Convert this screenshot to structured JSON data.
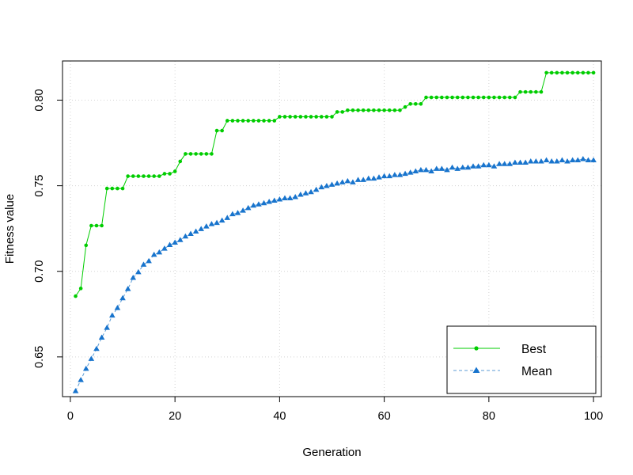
{
  "chart_data": {
    "type": "line",
    "title": "",
    "xlabel": "Generation",
    "ylabel": "Fitness value",
    "xlim": [
      -1.5,
      101.5
    ],
    "ylim": [
      0.6268,
      0.8229
    ],
    "x_ticks": [
      "0",
      "20",
      "40",
      "60",
      "80",
      "100"
    ],
    "y_ticks": [
      "0.65",
      "0.70",
      "0.75",
      "0.80"
    ],
    "x_tick_values": [
      0,
      20,
      40,
      60,
      80,
      100
    ],
    "y_tick_values": [
      0.65,
      0.7,
      0.75,
      0.8
    ],
    "grid": true,
    "legend_position": "bottom-right",
    "series": [
      {
        "name": "Best",
        "color": "#00cd00",
        "marker": "circle",
        "line_style": "solid",
        "x": [
          1,
          2,
          3,
          4,
          5,
          6,
          7,
          8,
          9,
          10,
          11,
          12,
          13,
          14,
          15,
          16,
          17,
          18,
          19,
          20,
          21,
          22,
          23,
          24,
          25,
          26,
          27,
          28,
          29,
          30,
          31,
          32,
          33,
          34,
          35,
          36,
          37,
          38,
          39,
          40,
          41,
          42,
          43,
          44,
          45,
          46,
          47,
          48,
          49,
          50,
          51,
          52,
          53,
          54,
          55,
          56,
          57,
          58,
          59,
          60,
          61,
          62,
          63,
          64,
          65,
          66,
          67,
          68,
          69,
          70,
          71,
          72,
          73,
          74,
          75,
          76,
          77,
          78,
          79,
          80,
          81,
          82,
          83,
          84,
          85,
          86,
          87,
          88,
          89,
          90,
          91,
          92,
          93,
          94,
          95,
          96,
          97,
          98,
          99,
          100
        ],
        "values": [
          0.6855,
          0.69,
          0.7152,
          0.7267,
          0.7267,
          0.7267,
          0.7484,
          0.7484,
          0.7484,
          0.7484,
          0.7556,
          0.7556,
          0.7556,
          0.7556,
          0.7556,
          0.7556,
          0.7556,
          0.757,
          0.757,
          0.7584,
          0.7642,
          0.7686,
          0.7686,
          0.7686,
          0.7686,
          0.7686,
          0.7686,
          0.7822,
          0.7822,
          0.788,
          0.788,
          0.788,
          0.788,
          0.788,
          0.788,
          0.788,
          0.788,
          0.788,
          0.788,
          0.7903,
          0.7903,
          0.7903,
          0.7903,
          0.7903,
          0.7903,
          0.7903,
          0.7903,
          0.7903,
          0.7903,
          0.7903,
          0.7931,
          0.7931,
          0.7941,
          0.7941,
          0.7941,
          0.7941,
          0.7941,
          0.7941,
          0.7941,
          0.7941,
          0.7941,
          0.7941,
          0.7941,
          0.796,
          0.7978,
          0.7978,
          0.7978,
          0.8016,
          0.8016,
          0.8016,
          0.8016,
          0.8016,
          0.8016,
          0.8016,
          0.8016,
          0.8016,
          0.8016,
          0.8016,
          0.8016,
          0.8016,
          0.8016,
          0.8016,
          0.8016,
          0.8016,
          0.8016,
          0.8048,
          0.8048,
          0.8048,
          0.8048,
          0.8048,
          0.816,
          0.816,
          0.816,
          0.816,
          0.816,
          0.816,
          0.816,
          0.816,
          0.816,
          0.816
        ]
      },
      {
        "name": "Mean",
        "color": "#1874cd",
        "marker": "triangle",
        "line_style": "dashed",
        "x": [
          1,
          2,
          3,
          4,
          5,
          6,
          7,
          8,
          9,
          10,
          11,
          12,
          13,
          14,
          15,
          16,
          17,
          18,
          19,
          20,
          21,
          22,
          23,
          24,
          25,
          26,
          27,
          28,
          29,
          30,
          31,
          32,
          33,
          34,
          35,
          36,
          37,
          38,
          39,
          40,
          41,
          42,
          43,
          44,
          45,
          46,
          47,
          48,
          49,
          50,
          51,
          52,
          53,
          54,
          55,
          56,
          57,
          58,
          59,
          60,
          61,
          62,
          63,
          64,
          65,
          66,
          67,
          68,
          69,
          70,
          71,
          72,
          73,
          74,
          75,
          76,
          77,
          78,
          79,
          80,
          81,
          82,
          83,
          84,
          85,
          86,
          87,
          88,
          89,
          90,
          91,
          92,
          93,
          94,
          95,
          96,
          97,
          98,
          99,
          100
        ],
        "values": [
          0.63,
          0.6365,
          0.6431,
          0.6489,
          0.6547,
          0.6613,
          0.667,
          0.6742,
          0.6786,
          0.6843,
          0.6897,
          0.6962,
          0.6995,
          0.7039,
          0.706,
          0.7097,
          0.7111,
          0.7133,
          0.7154,
          0.7168,
          0.7183,
          0.7204,
          0.7219,
          0.7233,
          0.7247,
          0.7262,
          0.7276,
          0.7283,
          0.7297,
          0.7312,
          0.7334,
          0.7341,
          0.7355,
          0.737,
          0.7384,
          0.7391,
          0.7398,
          0.7406,
          0.7413,
          0.742,
          0.7427,
          0.7427,
          0.7434,
          0.7448,
          0.7456,
          0.7463,
          0.7477,
          0.7491,
          0.7499,
          0.7506,
          0.7513,
          0.752,
          0.7527,
          0.752,
          0.7534,
          0.7534,
          0.7542,
          0.7542,
          0.7549,
          0.7556,
          0.7556,
          0.7563,
          0.7563,
          0.757,
          0.7577,
          0.7584,
          0.7592,
          0.7592,
          0.7584,
          0.7599,
          0.7599,
          0.7592,
          0.7606,
          0.7599,
          0.7606,
          0.7606,
          0.7613,
          0.7613,
          0.762,
          0.762,
          0.7613,
          0.7627,
          0.7627,
          0.7627,
          0.7635,
          0.7635,
          0.7635,
          0.7642,
          0.7642,
          0.7642,
          0.7649,
          0.7642,
          0.7642,
          0.7649,
          0.7642,
          0.7649,
          0.7649,
          0.7656,
          0.7649,
          0.7649
        ]
      }
    ]
  }
}
